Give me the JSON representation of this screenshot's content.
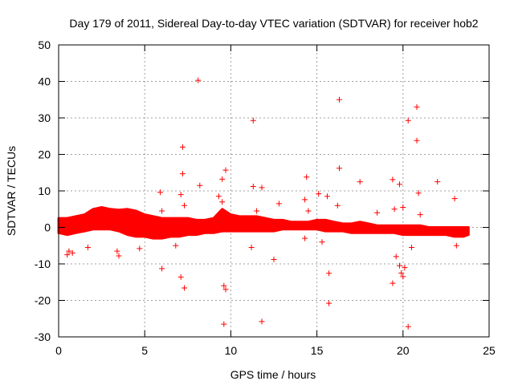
{
  "chart_data": {
    "type": "scatter",
    "title": "Day 179 of 2011, Sidereal Day-to-day VTEC variation (SDTVAR) for receiver hob2",
    "xlabel": "GPS time / hours",
    "ylabel": "SDTVAR / TECUs",
    "xlim": [
      0,
      25
    ],
    "ylim": [
      -30,
      50
    ],
    "xticks": [
      0,
      5,
      10,
      15,
      20,
      25
    ],
    "yticks": [
      -30,
      -20,
      -10,
      0,
      10,
      20,
      30,
      40,
      50
    ],
    "grid": true,
    "marker": "+",
    "color": "#ff0000",
    "series": [
      {
        "name": "SDTVAR",
        "band": {
          "description": "dense continuous band of samples (upper/lower envelope in TECU)",
          "x": [
            0.0,
            0.5,
            1.0,
            1.5,
            2.0,
            2.5,
            3.0,
            3.5,
            4.0,
            4.5,
            5.0,
            5.5,
            6.0,
            6.5,
            7.0,
            7.5,
            8.0,
            8.5,
            9.0,
            9.5,
            10.0,
            10.5,
            11.0,
            11.5,
            12.0,
            12.5,
            13.0,
            13.5,
            14.0,
            14.5,
            15.0,
            15.5,
            16.0,
            16.5,
            17.0,
            17.5,
            18.0,
            18.5,
            19.0,
            19.5,
            20.0,
            20.5,
            21.0,
            21.5,
            22.0,
            22.5,
            23.0,
            23.5,
            23.8
          ],
          "upper": [
            2.5,
            2.5,
            3.0,
            3.5,
            5.0,
            5.5,
            5.0,
            4.8,
            5.0,
            4.5,
            3.5,
            3.0,
            2.5,
            2.5,
            2.5,
            2.5,
            2.0,
            2.0,
            2.5,
            5.0,
            3.5,
            3.0,
            3.0,
            3.0,
            2.5,
            2.0,
            2.0,
            1.5,
            1.5,
            1.5,
            2.0,
            2.0,
            1.5,
            1.0,
            1.0,
            1.5,
            1.0,
            0.5,
            0.5,
            0.5,
            0.5,
            0.5,
            0.5,
            0.0,
            0.0,
            0.0,
            0.0,
            0.0,
            0.0
          ],
          "lower": [
            -1.5,
            -2.0,
            -1.5,
            -1.0,
            -0.5,
            -0.5,
            -0.5,
            -1.0,
            -2.0,
            -2.5,
            -2.5,
            -3.0,
            -3.0,
            -2.5,
            -2.5,
            -2.0,
            -2.0,
            -1.5,
            -1.5,
            -1.0,
            -1.0,
            -1.0,
            -1.0,
            -1.0,
            -1.0,
            -1.0,
            -0.5,
            -0.5,
            -0.5,
            -0.5,
            -0.5,
            -1.0,
            -1.0,
            -1.0,
            -1.5,
            -1.5,
            -1.5,
            -1.5,
            -1.5,
            -1.5,
            -2.0,
            -2.0,
            -2.0,
            -2.0,
            -2.0,
            -2.0,
            -2.5,
            -2.5,
            -2.0
          ]
        },
        "points": [
          [
            8.1,
            40.3
          ],
          [
            16.3,
            35.0
          ],
          [
            20.8,
            33.0
          ],
          [
            11.3,
            29.3
          ],
          [
            20.3,
            29.3
          ],
          [
            20.8,
            23.8
          ],
          [
            7.2,
            22.0
          ],
          [
            9.7,
            15.7
          ],
          [
            16.3,
            16.2
          ],
          [
            7.2,
            14.7
          ],
          [
            14.4,
            13.8
          ],
          [
            19.4,
            13.1
          ],
          [
            9.5,
            13.2
          ],
          [
            17.5,
            12.5
          ],
          [
            22.0,
            12.5
          ],
          [
            19.8,
            11.8
          ],
          [
            8.2,
            11.5
          ],
          [
            11.3,
            11.2
          ],
          [
            11.8,
            10.9
          ],
          [
            5.9,
            9.6
          ],
          [
            15.1,
            9.2
          ],
          [
            20.9,
            9.4
          ],
          [
            7.1,
            9.0
          ],
          [
            9.3,
            8.5
          ],
          [
            15.6,
            8.5
          ],
          [
            23.0,
            7.9
          ],
          [
            14.3,
            7.6
          ],
          [
            9.5,
            7.0
          ],
          [
            12.8,
            6.5
          ],
          [
            16.2,
            6.0
          ],
          [
            7.3,
            6.0
          ],
          [
            20.0,
            5.5
          ],
          [
            19.5,
            5.0
          ],
          [
            6.0,
            4.5
          ],
          [
            11.5,
            4.5
          ],
          [
            14.5,
            4.5
          ],
          [
            18.5,
            4.0
          ],
          [
            21.0,
            3.5
          ],
          [
            0.6,
            -6.5
          ],
          [
            0.5,
            -7.5
          ],
          [
            0.8,
            -7.0
          ],
          [
            1.7,
            -5.5
          ],
          [
            3.4,
            -6.5
          ],
          [
            3.5,
            -7.8
          ],
          [
            4.7,
            -5.8
          ],
          [
            6.8,
            -5.0
          ],
          [
            6.0,
            -11.3
          ],
          [
            7.1,
            -13.6
          ],
          [
            7.3,
            -16.6
          ],
          [
            9.6,
            -16.0
          ],
          [
            9.7,
            -17.0
          ],
          [
            11.2,
            -5.5
          ],
          [
            12.5,
            -8.8
          ],
          [
            14.3,
            -3.0
          ],
          [
            15.3,
            -4.0
          ],
          [
            15.7,
            -12.6
          ],
          [
            15.7,
            -20.8
          ],
          [
            19.4,
            -15.3
          ],
          [
            19.8,
            -10.5
          ],
          [
            19.9,
            -12.5
          ],
          [
            20.0,
            -13.5
          ],
          [
            20.1,
            -11.0
          ],
          [
            19.6,
            -8.0
          ],
          [
            20.5,
            -5.5
          ],
          [
            23.1,
            -5.0
          ],
          [
            9.6,
            -26.5
          ],
          [
            11.8,
            -25.8
          ],
          [
            20.3,
            -27.2
          ]
        ]
      }
    ]
  }
}
